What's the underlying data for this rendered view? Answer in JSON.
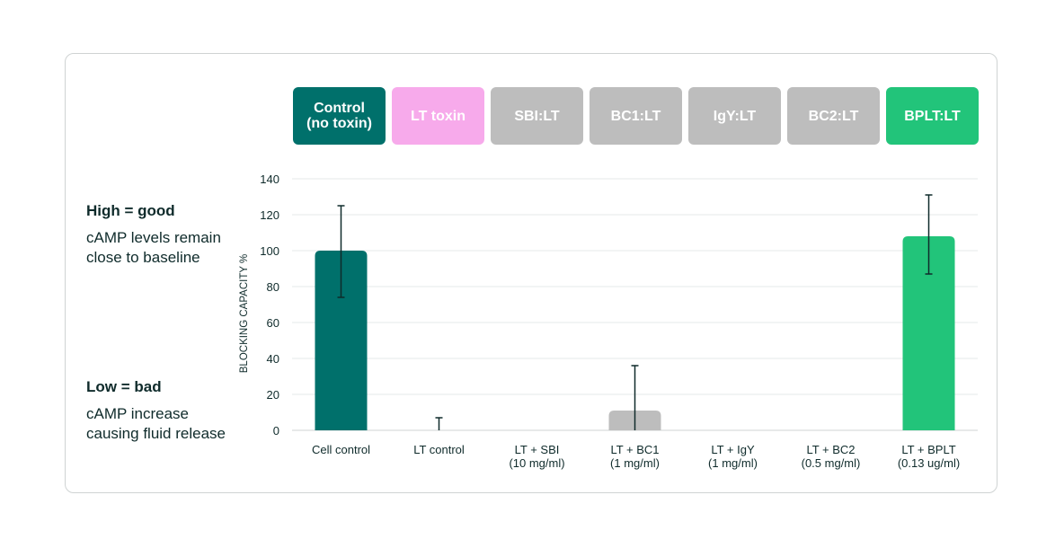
{
  "side": {
    "high_title": "High = good",
    "high_text": "cAMP levels remain close to baseline",
    "low_title": "Low = bad",
    "low_text": "cAMP increase causing fluid release"
  },
  "chips": [
    {
      "label": "Control\n(no toxin)",
      "color": "#00706b"
    },
    {
      "label": "LT toxin",
      "color": "#f7aaeb"
    },
    {
      "label": "SBI:LT",
      "color": "#bdbdbd"
    },
    {
      "label": "BC1:LT",
      "color": "#bdbdbd"
    },
    {
      "label": "IgY:LT",
      "color": "#bdbdbd"
    },
    {
      "label": "BC2:LT",
      "color": "#bdbdbd"
    },
    {
      "label": "BPLT:LT",
      "color": "#22c47a"
    }
  ],
  "chart_data": {
    "type": "bar",
    "ylabel": "BLOCKING CAPACITY %",
    "ylim": [
      0,
      140
    ],
    "yticks": [
      0,
      20,
      40,
      60,
      80,
      100,
      120,
      140
    ],
    "grid": true,
    "categories": [
      [
        "Cell control"
      ],
      [
        "LT control"
      ],
      [
        "LT + SBI",
        "(10 mg/ml)"
      ],
      [
        "LT + BC1",
        "(1 mg/ml)"
      ],
      [
        "LT + IgY",
        "(1 mg/ml)"
      ],
      [
        "LT + BC2",
        "(0.5 mg/ml)"
      ],
      [
        "LT + BPLT",
        "(0.13 ug/ml)"
      ]
    ],
    "values": [
      100,
      0,
      0,
      11,
      0,
      0,
      108
    ],
    "error_low": [
      74,
      0,
      0,
      0,
      0,
      0,
      87
    ],
    "error_high": [
      125,
      7,
      0,
      36,
      0,
      0,
      131
    ],
    "colors": [
      "#00706b",
      "#f7aaeb",
      "#bdbdbd",
      "#bdbdbd",
      "#bdbdbd",
      "#bdbdbd",
      "#22c47a"
    ]
  }
}
